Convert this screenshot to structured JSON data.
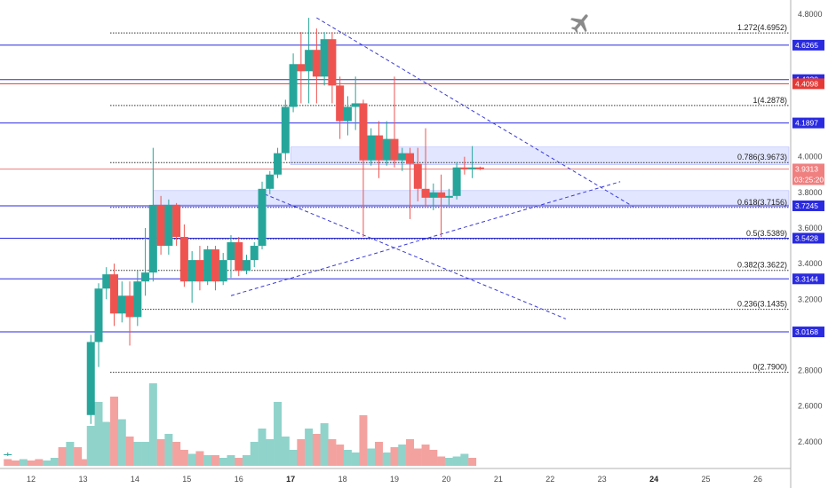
{
  "chart_data": {
    "type": "candlestick",
    "y_axis": {
      "ticks": [
        "4.8000",
        "4.0000",
        "3.8000",
        "3.6000",
        "3.4000",
        "3.2000",
        "2.8000",
        "2.6000",
        "2.4000"
      ],
      "ylim": [
        2.25,
        4.88
      ]
    },
    "x_axis": {
      "ticks": [
        {
          "label": "12",
          "day": 12
        },
        {
          "label": "13",
          "day": 13
        },
        {
          "label": "14",
          "day": 14
        },
        {
          "label": "15",
          "day": 15
        },
        {
          "label": "16",
          "day": 16
        },
        {
          "label": "17",
          "day": 17,
          "bold": true
        },
        {
          "label": "18",
          "day": 18
        },
        {
          "label": "19",
          "day": 19
        },
        {
          "label": "20",
          "day": 20
        },
        {
          "label": "21",
          "day": 21
        },
        {
          "label": "22",
          "day": 22
        },
        {
          "label": "23",
          "day": 23
        },
        {
          "label": "24",
          "day": 24,
          "bold": true
        },
        {
          "label": "25",
          "day": 25
        },
        {
          "label": "26",
          "day": 26
        }
      ],
      "xlim": [
        11.4,
        26.6
      ]
    },
    "fib_levels": [
      {
        "label": "1.272(4.6952)",
        "value": 4.6952
      },
      {
        "label": "1(4.2878)",
        "value": 4.2878
      },
      {
        "label": "0.786(3.9673)",
        "value": 3.9673
      },
      {
        "label": "0.618(3.7156)",
        "value": 3.7156
      },
      {
        "label": "0.5(3.5389)",
        "value": 3.5389
      },
      {
        "label": "0.382(3.3622)",
        "value": 3.3622
      },
      {
        "label": "0.236(3.1435)",
        "value": 3.1435
      },
      {
        "label": "0(2.7900)",
        "value": 2.79
      }
    ],
    "horizontal_levels": [
      {
        "label": "4.6265",
        "value": 4.6265,
        "color": "#2a2ae0"
      },
      {
        "label": "4.4330",
        "value": 4.433,
        "color": "#2a2ae0"
      },
      {
        "label": "4.4098",
        "value": 4.4098,
        "color": "#e53935"
      },
      {
        "label": "4.1897",
        "value": 4.1897,
        "color": "#2a2ae0"
      },
      {
        "label": "3.7245",
        "value": 3.7245,
        "color": "#2a2ae0"
      },
      {
        "label": "3.5428",
        "value": 3.5428,
        "color": "#2a2ae0"
      },
      {
        "label": "3.3144",
        "value": 3.3144,
        "color": "#2a2ae0"
      },
      {
        "label": "3.0168",
        "value": 3.0168,
        "color": "#2a2ae0"
      }
    ],
    "current_price": {
      "label": "3.9313",
      "value": 3.9313,
      "countdown": "03:25:20"
    },
    "zones": [
      {
        "from": 3.955,
        "to": 4.055,
        "x0": 17.0,
        "x1": 26.6
      },
      {
        "from": 3.73,
        "to": 3.81,
        "x0": 14.35,
        "x1": 26.6
      }
    ],
    "trendlines": [
      {
        "x0": 17.5,
        "y0": 4.78,
        "x1": 23.6,
        "y1": 3.72
      },
      {
        "x0": 16.5,
        "y0": 3.79,
        "x1": 22.3,
        "y1": 3.09
      },
      {
        "x0": 15.85,
        "y0": 3.22,
        "x1": 23.35,
        "y1": 3.86
      }
    ],
    "candles": [
      [
        11.55,
        2.33,
        2.33,
        2.32,
        2.34
      ],
      [
        13.15,
        2.55,
        2.96,
        2.5,
        3.0
      ],
      [
        13.3,
        2.96,
        3.26,
        2.82,
        3.29
      ],
      [
        13.45,
        3.26,
        3.34,
        3.2,
        3.38
      ],
      [
        13.6,
        3.34,
        3.12,
        3.05,
        3.4
      ],
      [
        13.75,
        3.12,
        3.22,
        3.07,
        3.3
      ],
      [
        13.9,
        3.22,
        3.1,
        2.94,
        3.3
      ],
      [
        14.05,
        3.1,
        3.3,
        3.05,
        3.36
      ],
      [
        14.2,
        3.3,
        3.35,
        3.22,
        3.6
      ],
      [
        14.35,
        3.35,
        3.73,
        3.3,
        4.05
      ],
      [
        14.5,
        3.73,
        3.5,
        3.45,
        3.78
      ],
      [
        14.65,
        3.5,
        3.73,
        3.45,
        3.76
      ],
      [
        14.8,
        3.73,
        3.55,
        3.5,
        3.74
      ],
      [
        14.95,
        3.55,
        3.3,
        3.27,
        3.62
      ],
      [
        15.1,
        3.3,
        3.42,
        3.18,
        3.47
      ],
      [
        15.25,
        3.42,
        3.3,
        3.25,
        3.5
      ],
      [
        15.4,
        3.3,
        3.48,
        3.28,
        3.5
      ],
      [
        15.55,
        3.48,
        3.3,
        3.25,
        3.5
      ],
      [
        15.7,
        3.3,
        3.42,
        3.28,
        3.46
      ],
      [
        15.85,
        3.42,
        3.52,
        3.32,
        3.56
      ],
      [
        16.0,
        3.52,
        3.36,
        3.33,
        3.55
      ],
      [
        16.15,
        3.36,
        3.42,
        3.34,
        3.45
      ],
      [
        16.3,
        3.42,
        3.5,
        3.38,
        3.52
      ],
      [
        16.45,
        3.5,
        3.82,
        3.48,
        3.86
      ],
      [
        16.6,
        3.82,
        3.9,
        3.79,
        3.92
      ],
      [
        16.75,
        3.9,
        4.02,
        3.88,
        4.05
      ],
      [
        16.9,
        4.02,
        4.28,
        3.98,
        4.32
      ],
      [
        17.05,
        4.28,
        4.52,
        4.25,
        4.58
      ],
      [
        17.2,
        4.52,
        4.48,
        4.3,
        4.7
      ],
      [
        17.35,
        4.48,
        4.6,
        4.3,
        4.78
      ],
      [
        17.5,
        4.6,
        4.45,
        4.3,
        4.72
      ],
      [
        17.65,
        4.45,
        4.66,
        4.4,
        4.7
      ],
      [
        17.8,
        4.66,
        4.4,
        4.3,
        4.7
      ],
      [
        17.95,
        4.4,
        4.2,
        4.1,
        4.45
      ],
      [
        18.1,
        4.2,
        4.28,
        4.12,
        4.34
      ],
      [
        18.25,
        4.28,
        4.3,
        4.15,
        4.45
      ],
      [
        18.4,
        4.3,
        3.98,
        3.55,
        4.32
      ],
      [
        18.55,
        3.98,
        4.12,
        3.95,
        4.16
      ],
      [
        18.7,
        4.12,
        3.98,
        3.88,
        4.2
      ],
      [
        18.85,
        3.98,
        4.1,
        3.95,
        4.2
      ],
      [
        19.0,
        4.1,
        3.98,
        3.94,
        4.45
      ],
      [
        19.15,
        3.98,
        4.02,
        3.92,
        4.05
      ],
      [
        19.3,
        4.02,
        3.96,
        3.65,
        4.05
      ],
      [
        19.45,
        3.96,
        3.82,
        3.75,
        4.05
      ],
      [
        19.6,
        3.82,
        3.77,
        3.72,
        4.16
      ],
      [
        19.75,
        3.77,
        3.8,
        3.7,
        3.85
      ],
      [
        19.9,
        3.8,
        3.77,
        3.55,
        3.9
      ],
      [
        20.05,
        3.77,
        3.78,
        3.73,
        3.82
      ],
      [
        20.2,
        3.78,
        3.94,
        3.76,
        3.97
      ],
      [
        20.35,
        3.94,
        3.93,
        3.9,
        4.0
      ],
      [
        20.5,
        3.93,
        3.94,
        3.88,
        4.06
      ],
      [
        20.65,
        3.94,
        3.931,
        3.925,
        3.945
      ]
    ],
    "volumes": [
      [
        11.55,
        0.05,
        "down"
      ],
      [
        11.7,
        0.04,
        "down"
      ],
      [
        11.85,
        0.05,
        "up"
      ],
      [
        12.0,
        0.04,
        "down"
      ],
      [
        12.15,
        0.05,
        "down"
      ],
      [
        12.3,
        0.04,
        "up"
      ],
      [
        12.45,
        0.06,
        "up"
      ],
      [
        12.6,
        0.14,
        "down"
      ],
      [
        12.75,
        0.18,
        "up"
      ],
      [
        12.9,
        0.14,
        "down"
      ],
      [
        13.05,
        0.05,
        "down"
      ],
      [
        13.15,
        0.3,
        "up"
      ],
      [
        13.3,
        0.48,
        "up"
      ],
      [
        13.45,
        0.33,
        "up"
      ],
      [
        13.6,
        0.52,
        "down"
      ],
      [
        13.75,
        0.35,
        "up"
      ],
      [
        13.9,
        0.22,
        "down"
      ],
      [
        14.05,
        0.18,
        "up"
      ],
      [
        14.2,
        0.18,
        "up"
      ],
      [
        14.35,
        0.62,
        "up"
      ],
      [
        14.5,
        0.2,
        "down"
      ],
      [
        14.65,
        0.24,
        "up"
      ],
      [
        14.8,
        0.18,
        "down"
      ],
      [
        14.95,
        0.12,
        "down"
      ],
      [
        15.1,
        0.09,
        "up"
      ],
      [
        15.25,
        0.11,
        "down"
      ],
      [
        15.4,
        0.08,
        "up"
      ],
      [
        15.55,
        0.08,
        "down"
      ],
      [
        15.7,
        0.06,
        "up"
      ],
      [
        15.85,
        0.08,
        "up"
      ],
      [
        16.0,
        0.06,
        "down"
      ],
      [
        16.15,
        0.08,
        "up"
      ],
      [
        16.3,
        0.18,
        "up"
      ],
      [
        16.45,
        0.28,
        "up"
      ],
      [
        16.6,
        0.2,
        "up"
      ],
      [
        16.75,
        0.48,
        "up"
      ],
      [
        16.9,
        0.22,
        "up"
      ],
      [
        17.05,
        0.12,
        "up"
      ],
      [
        17.2,
        0.2,
        "down"
      ],
      [
        17.35,
        0.28,
        "up"
      ],
      [
        17.5,
        0.24,
        "down"
      ],
      [
        17.65,
        0.32,
        "up"
      ],
      [
        17.8,
        0.2,
        "down"
      ],
      [
        17.95,
        0.16,
        "down"
      ],
      [
        18.1,
        0.12,
        "up"
      ],
      [
        18.25,
        0.1,
        "up"
      ],
      [
        18.4,
        0.38,
        "down"
      ],
      [
        18.55,
        0.13,
        "up"
      ],
      [
        18.7,
        0.18,
        "down"
      ],
      [
        18.85,
        0.1,
        "up"
      ],
      [
        19.0,
        0.14,
        "down"
      ],
      [
        19.15,
        0.16,
        "up"
      ],
      [
        19.3,
        0.2,
        "down"
      ],
      [
        19.45,
        0.13,
        "down"
      ],
      [
        19.6,
        0.16,
        "down"
      ],
      [
        19.75,
        0.12,
        "down"
      ],
      [
        19.9,
        0.07,
        "down"
      ],
      [
        20.05,
        0.06,
        "up"
      ],
      [
        20.2,
        0.07,
        "up"
      ],
      [
        20.35,
        0.09,
        "up"
      ],
      [
        20.5,
        0.06,
        "down"
      ]
    ]
  },
  "colors": {
    "up": "#26a69a",
    "down": "#ef5350",
    "vol_up": "#8fd3cb",
    "vol_down": "#f3a2a0",
    "blue_line": "#2a2ae0",
    "red_line": "#e53935",
    "zone": "#d6dcff",
    "current_price": "#f08080"
  },
  "icons": {
    "plane": "airplane-icon"
  }
}
